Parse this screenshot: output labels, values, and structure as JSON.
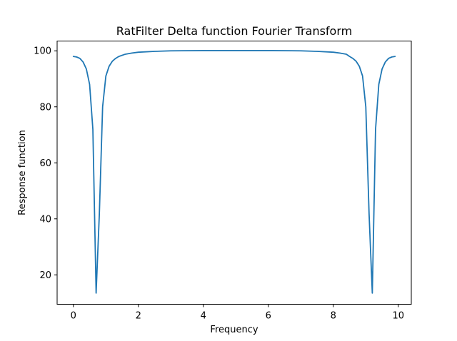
{
  "chart_data": {
    "type": "line",
    "title": "RatFilter Delta function Fourier Transform",
    "xlabel": "Frequency",
    "ylabel": "Response function",
    "xlim": [
      -0.5,
      10.4
    ],
    "ylim": [
      9.5,
      103.5
    ],
    "xticks": [
      0,
      2,
      4,
      6,
      8,
      10
    ],
    "yticks": [
      20,
      40,
      60,
      80,
      100
    ],
    "xtick_labels": [
      "0",
      "2",
      "4",
      "6",
      "8",
      "10"
    ],
    "ytick_labels": [
      "20",
      "40",
      "60",
      "80",
      "100"
    ],
    "grid": false,
    "series": [
      {
        "color": "#1f77b4",
        "x": [
          0.0,
          0.1,
          0.2,
          0.3,
          0.4,
          0.5,
          0.6,
          0.7,
          0.8,
          0.9,
          1.0,
          1.1,
          1.2,
          1.3,
          1.4,
          1.6,
          1.8,
          2.0,
          2.5,
          3.0,
          4.0,
          5.0,
          6.0,
          7.0,
          7.5,
          8.0,
          8.2,
          8.4,
          8.5,
          8.6,
          8.7,
          8.8,
          8.9,
          9.0,
          9.1,
          9.2,
          9.3,
          9.4,
          9.5,
          9.6,
          9.7,
          9.8,
          9.9
        ],
        "y": [
          98.0,
          97.8,
          97.3,
          96.0,
          93.5,
          88.0,
          72.0,
          13.5,
          42.0,
          80.0,
          91.0,
          94.5,
          96.3,
          97.3,
          98.0,
          98.8,
          99.2,
          99.5,
          99.8,
          100.0,
          100.1,
          100.1,
          100.1,
          100.0,
          99.8,
          99.5,
          99.2,
          98.8,
          98.0,
          97.3,
          96.3,
          94.5,
          91.0,
          80.0,
          42.0,
          13.5,
          72.0,
          88.0,
          93.5,
          96.0,
          97.3,
          97.8,
          98.0
        ]
      }
    ]
  }
}
